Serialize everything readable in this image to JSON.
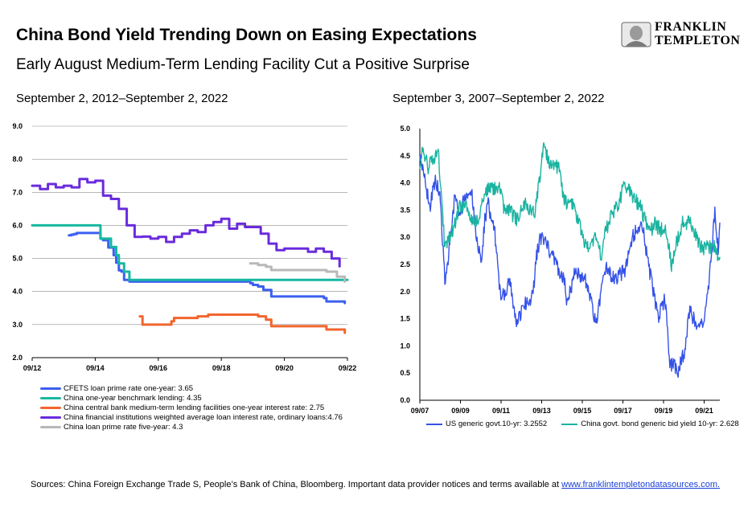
{
  "header": {
    "title": "China Bond Yield Trending Down on Easing Expectations",
    "subtitle": "Early August Medium-Term Lending Facility Cut a Positive Surprise"
  },
  "logo": {
    "line1": "FRANKLIN",
    "line2": "TEMPLETON",
    "icon": "portrait-seal-icon"
  },
  "colors": {
    "blue": "#3c5ff0",
    "teal": "#16b8a0",
    "orange": "#f2662e",
    "purple": "#6a2bdc",
    "gray": "#b8b8b8",
    "us": "#3552e8",
    "china": "#19b3a0",
    "grid": "#8c8c8c"
  },
  "left_range": "September 2, 2012–September 2, 2022",
  "right_range": "September 3, 2007–September 2, 2022",
  "source": {
    "text": "Sources: China Foreign Exchange Trade S, People’s Bank of China, Bloomberg. Important data provider notices and terms available at ",
    "link": "www.franklintempletondatasources.com."
  },
  "chart_data": [
    {
      "type": "line",
      "title": "",
      "xlabel": "",
      "ylabel": "",
      "ylim": [
        2.0,
        9.0
      ],
      "xlim": [
        "2012-09",
        "2022-09"
      ],
      "y_ticks": [
        "9.0",
        "8.0",
        "7.0",
        "6.0",
        "5.0",
        "4.0",
        "3.0",
        "2.0"
      ],
      "x_ticks": [
        "09/12",
        "09/14",
        "09/16",
        "09/18",
        "09/20",
        "09/22"
      ],
      "grid": "horizontal",
      "legend_position": "bottom",
      "series": [
        {
          "name": "CFETS loan prime rate one-year: 3.65",
          "color_key": "blue",
          "points": [
            [
              "2013-11",
              5.7
            ],
            [
              "2013-12",
              5.72
            ],
            [
              "2014-01",
              5.74
            ],
            [
              "2014-02",
              5.77
            ],
            [
              "2014-07",
              5.77
            ],
            [
              "2014-11",
              5.6
            ],
            [
              "2014-12",
              5.55
            ],
            [
              "2015-02",
              5.33
            ],
            [
              "2015-04",
              5.1
            ],
            [
              "2015-05",
              4.87
            ],
            [
              "2015-06",
              4.64
            ],
            [
              "2015-07",
              4.6
            ],
            [
              "2015-08",
              4.35
            ],
            [
              "2015-10",
              4.3
            ],
            [
              "2019-07",
              4.31
            ],
            [
              "2019-08",
              4.25
            ],
            [
              "2019-09",
              4.2
            ],
            [
              "2019-11",
              4.15
            ],
            [
              "2020-01",
              4.05
            ],
            [
              "2020-02",
              4.05
            ],
            [
              "2020-04",
              3.85
            ],
            [
              "2021-12",
              3.8
            ],
            [
              "2022-01",
              3.7
            ],
            [
              "2022-08",
              3.65
            ]
          ]
        },
        {
          "name": "China one-year benchmark lending: 4.35",
          "color_key": "teal",
          "points": [
            [
              "2012-09",
              6.0
            ],
            [
              "2014-11",
              6.0
            ],
            [
              "2014-11",
              5.6
            ],
            [
              "2015-03",
              5.35
            ],
            [
              "2015-05",
              5.1
            ],
            [
              "2015-06",
              4.85
            ],
            [
              "2015-08",
              4.6
            ],
            [
              "2015-10",
              4.35
            ],
            [
              "2022-09",
              4.35
            ]
          ]
        },
        {
          "name": "China central bank medium-term lending facilities one-year interest rate: 2.75",
          "color_key": "orange",
          "points": [
            [
              "2016-02",
              3.25
            ],
            [
              "2016-03",
              3.0
            ],
            [
              "2016-11",
              3.0
            ],
            [
              "2017-02",
              3.1
            ],
            [
              "2017-03",
              3.2
            ],
            [
              "2017-12",
              3.25
            ],
            [
              "2018-04",
              3.3
            ],
            [
              "2019-10",
              3.3
            ],
            [
              "2019-11",
              3.25
            ],
            [
              "2020-02",
              3.15
            ],
            [
              "2020-04",
              2.95
            ],
            [
              "2022-01",
              2.85
            ],
            [
              "2022-08",
              2.75
            ]
          ]
        },
        {
          "name": "China financial institutions weighted average loan interest rate, ordinary loans:4.76",
          "color_key": "purple",
          "points": [
            [
              "2012-09",
              7.2
            ],
            [
              "2012-12",
              7.1
            ],
            [
              "2013-03",
              7.25
            ],
            [
              "2013-06",
              7.15
            ],
            [
              "2013-09",
              7.2
            ],
            [
              "2013-12",
              7.15
            ],
            [
              "2014-03",
              7.4
            ],
            [
              "2014-06",
              7.3
            ],
            [
              "2014-09",
              7.35
            ],
            [
              "2014-12",
              6.9
            ],
            [
              "2015-03",
              6.8
            ],
            [
              "2015-06",
              6.5
            ],
            [
              "2015-09",
              6.0
            ],
            [
              "2015-12",
              5.65
            ],
            [
              "2016-03",
              5.66
            ],
            [
              "2016-06",
              5.6
            ],
            [
              "2016-09",
              5.65
            ],
            [
              "2016-12",
              5.5
            ],
            [
              "2017-03",
              5.65
            ],
            [
              "2017-06",
              5.75
            ],
            [
              "2017-09",
              5.85
            ],
            [
              "2017-12",
              5.8
            ],
            [
              "2018-03",
              6.0
            ],
            [
              "2018-06",
              6.1
            ],
            [
              "2018-09",
              6.2
            ],
            [
              "2018-12",
              5.9
            ],
            [
              "2019-03",
              6.05
            ],
            [
              "2019-06",
              5.95
            ],
            [
              "2019-09",
              5.95
            ],
            [
              "2019-12",
              5.75
            ],
            [
              "2020-03",
              5.45
            ],
            [
              "2020-06",
              5.25
            ],
            [
              "2020-09",
              5.3
            ],
            [
              "2020-12",
              5.3
            ],
            [
              "2021-03",
              5.3
            ],
            [
              "2021-06",
              5.2
            ],
            [
              "2021-09",
              5.3
            ],
            [
              "2021-12",
              5.2
            ],
            [
              "2022-03",
              5.0
            ],
            [
              "2022-06",
              4.76
            ]
          ]
        },
        {
          "name": "China loan prime rate five-year: 4.3",
          "color_key": "gray",
          "points": [
            [
              "2019-08",
              4.85
            ],
            [
              "2019-11",
              4.8
            ],
            [
              "2020-02",
              4.75
            ],
            [
              "2020-04",
              4.65
            ],
            [
              "2021-12",
              4.65
            ],
            [
              "2022-01",
              4.6
            ],
            [
              "2022-05",
              4.45
            ],
            [
              "2022-08",
              4.3
            ]
          ]
        }
      ]
    },
    {
      "type": "line",
      "title": "",
      "xlabel": "",
      "ylabel": "",
      "ylim": [
        0.0,
        5.0
      ],
      "xlim": [
        "2007-09",
        "2022-09"
      ],
      "y_ticks": [
        "5.0",
        "4.5",
        "4.0",
        "3.5",
        "3.0",
        "2.5",
        "2.0",
        "1.5",
        "1.0",
        "0.5",
        "0.0"
      ],
      "x_ticks": [
        "09/07",
        "09/09",
        "09/11",
        "09/13",
        "09/15",
        "09/17",
        "09/19",
        "09/21"
      ],
      "grid": "none",
      "legend_position": "bottom",
      "series": [
        {
          "name": "US generic govt.10-yr: 3.2552",
          "color_key": "us",
          "points": [
            [
              "2007-09",
              4.5
            ],
            [
              "2007-12",
              4.05
            ],
            [
              "2008-03",
              3.55
            ],
            [
              "2008-06",
              4.05
            ],
            [
              "2008-09",
              3.8
            ],
            [
              "2008-12",
              2.2
            ],
            [
              "2009-03",
              2.85
            ],
            [
              "2009-06",
              3.75
            ],
            [
              "2009-09",
              3.4
            ],
            [
              "2009-12",
              3.75
            ],
            [
              "2010-04",
              3.9
            ],
            [
              "2010-06",
              3.2
            ],
            [
              "2010-10",
              2.45
            ],
            [
              "2010-12",
              3.35
            ],
            [
              "2011-02",
              3.6
            ],
            [
              "2011-06",
              3.05
            ],
            [
              "2011-09",
              2.0
            ],
            [
              "2011-12",
              1.95
            ],
            [
              "2012-03",
              2.2
            ],
            [
              "2012-07",
              1.45
            ],
            [
              "2012-12",
              1.75
            ],
            [
              "2013-05",
              1.95
            ],
            [
              "2013-07",
              2.65
            ],
            [
              "2013-09",
              2.95
            ],
            [
              "2013-12",
              2.95
            ],
            [
              "2014-06",
              2.55
            ],
            [
              "2014-12",
              2.2
            ],
            [
              "2015-01",
              1.75
            ],
            [
              "2015-06",
              2.35
            ],
            [
              "2015-12",
              2.25
            ],
            [
              "2016-07",
              1.4
            ],
            [
              "2016-12",
              2.45
            ],
            [
              "2017-06",
              2.2
            ],
            [
              "2017-12",
              2.4
            ],
            [
              "2018-05",
              3.05
            ],
            [
              "2018-11",
              3.2
            ],
            [
              "2019-01",
              2.7
            ],
            [
              "2019-08",
              1.5
            ],
            [
              "2019-12",
              1.9
            ],
            [
              "2020-03",
              0.7
            ],
            [
              "2020-08",
              0.55
            ],
            [
              "2020-12",
              0.92
            ],
            [
              "2021-03",
              1.7
            ],
            [
              "2021-08",
              1.25
            ],
            [
              "2021-12",
              1.5
            ],
            [
              "2022-03",
              2.35
            ],
            [
              "2022-06",
              3.45
            ],
            [
              "2022-08",
              2.75
            ],
            [
              "2022-09",
              3.26
            ]
          ]
        },
        {
          "name": "China govt. bond generic bid yield 10-yr: 2.628",
          "color_key": "china",
          "points": [
            [
              "2007-09",
              4.4
            ],
            [
              "2007-11",
              4.6
            ],
            [
              "2008-02",
              4.3
            ],
            [
              "2008-05",
              4.4
            ],
            [
              "2008-08",
              4.55
            ],
            [
              "2008-10",
              3.8
            ],
            [
              "2008-12",
              2.75
            ],
            [
              "2009-03",
              3.0
            ],
            [
              "2009-06",
              3.25
            ],
            [
              "2009-09",
              3.55
            ],
            [
              "2009-12",
              3.6
            ],
            [
              "2010-03",
              3.4
            ],
            [
              "2010-06",
              3.3
            ],
            [
              "2010-09",
              3.35
            ],
            [
              "2010-12",
              3.9
            ],
            [
              "2011-03",
              3.85
            ],
            [
              "2011-06",
              3.9
            ],
            [
              "2011-09",
              3.95
            ],
            [
              "2011-12",
              3.4
            ],
            [
              "2012-03",
              3.5
            ],
            [
              "2012-07",
              3.3
            ],
            [
              "2012-10",
              3.55
            ],
            [
              "2012-12",
              3.6
            ],
            [
              "2013-03",
              3.55
            ],
            [
              "2013-06",
              3.45
            ],
            [
              "2013-09",
              4.1
            ],
            [
              "2013-11",
              4.7
            ],
            [
              "2014-01",
              4.5
            ],
            [
              "2014-04",
              4.3
            ],
            [
              "2014-08",
              4.3
            ],
            [
              "2014-12",
              3.65
            ],
            [
              "2015-03",
              3.6
            ],
            [
              "2015-06",
              3.55
            ],
            [
              "2015-09",
              3.2
            ],
            [
              "2015-12",
              2.9
            ],
            [
              "2016-03",
              2.85
            ],
            [
              "2016-06",
              2.95
            ],
            [
              "2016-10",
              2.65
            ],
            [
              "2016-12",
              3.1
            ],
            [
              "2017-03",
              3.3
            ],
            [
              "2017-06",
              3.55
            ],
            [
              "2017-09",
              3.65
            ],
            [
              "2017-11",
              4.0
            ],
            [
              "2018-01",
              3.95
            ],
            [
              "2018-05",
              3.7
            ],
            [
              "2018-09",
              3.6
            ],
            [
              "2018-12",
              3.3
            ],
            [
              "2019-03",
              3.1
            ],
            [
              "2019-06",
              3.25
            ],
            [
              "2019-09",
              3.15
            ],
            [
              "2019-12",
              3.15
            ],
            [
              "2020-03",
              2.7
            ],
            [
              "2020-04",
              2.5
            ],
            [
              "2020-07",
              2.9
            ],
            [
              "2020-11",
              3.3
            ],
            [
              "2021-03",
              3.25
            ],
            [
              "2021-06",
              3.1
            ],
            [
              "2021-09",
              2.85
            ],
            [
              "2021-12",
              2.8
            ],
            [
              "2022-03",
              2.82
            ],
            [
              "2022-06",
              2.8
            ],
            [
              "2022-09",
              2.63
            ]
          ]
        }
      ]
    }
  ]
}
